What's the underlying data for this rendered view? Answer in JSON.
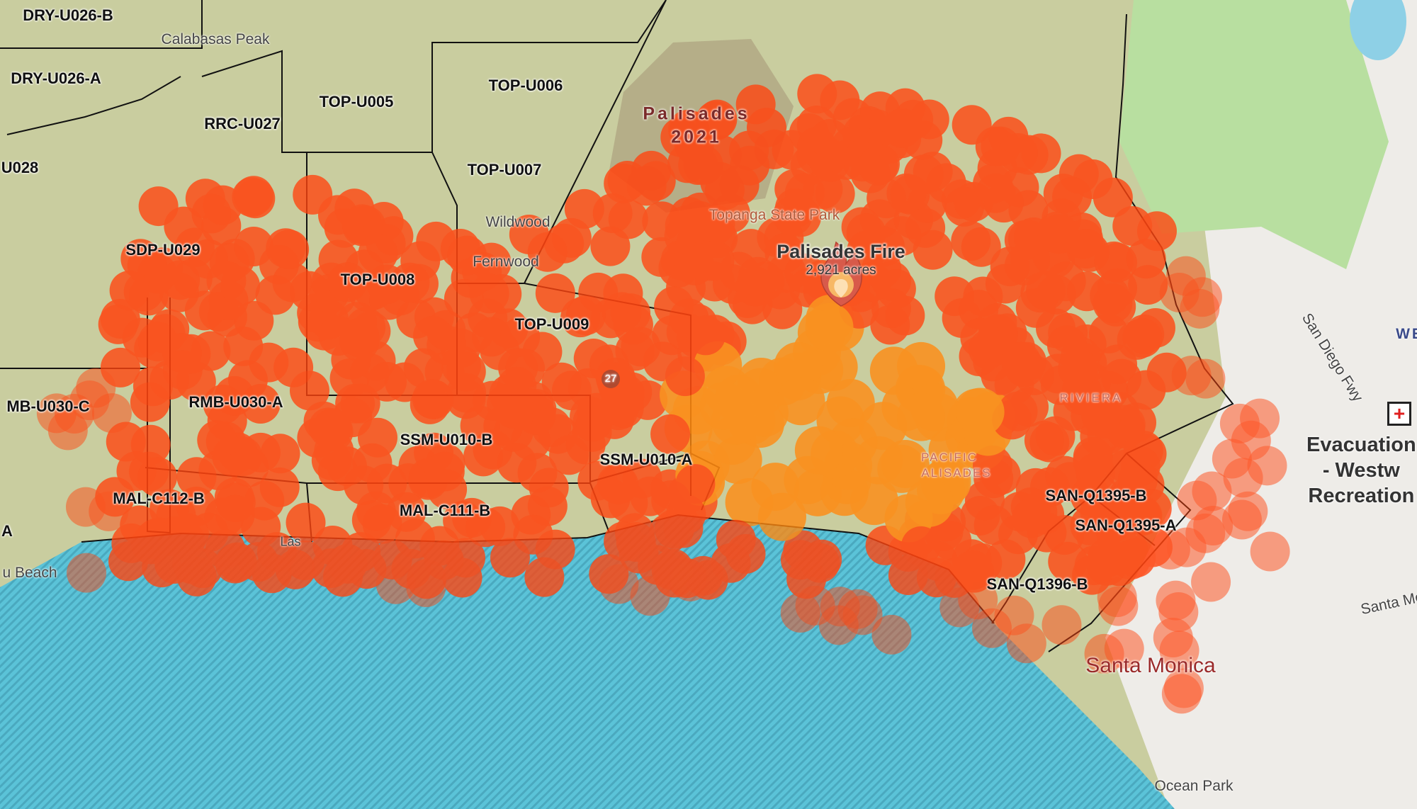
{
  "fire": {
    "name": "Palisades Fire",
    "acres": "2,921 acres",
    "icon": "flame-icon",
    "color_main": "#ff4510",
    "color_core": "#ff8a10"
  },
  "historic_fire": {
    "line1": "Palisades",
    "line2": "2021"
  },
  "evacuation": {
    "lines": [
      "Evacuation",
      "- Westw",
      "Recreation"
    ],
    "icon": "red-cross-icon"
  },
  "zones": [
    "DRY-U026-B",
    "DRY-U026-A",
    "RRC-U027",
    "U028",
    "TOP-U005",
    "TOP-U006",
    "TOP-U007",
    "SDP-U029",
    "TOP-U008",
    "TOP-U009",
    "MB-U030-C",
    "RMB-U030-A",
    "SSM-U010-B",
    "SSM-U010-A",
    "MAL-C112-B",
    "MAL-C111-B",
    "SAN-Q1395-B",
    "SAN-Q1395-A",
    "SAN-Q1396-B",
    "A"
  ],
  "places": {
    "calabasas_peak": "Calabasas Peak",
    "topanga_state_park": "Topanga State Park",
    "wildwood": "Wildwood",
    "fernwood": "Fernwood",
    "las": "Las",
    "malibu_beach": "u Beach",
    "santa_monica": "Santa Monica",
    "ocean_park": "Ocean Park",
    "san_diego_fwy": "San Diego Fwy",
    "we": "WE",
    "santa_mo": "Santa Mo",
    "riviera": "RIVIERA",
    "pacific": "PACIFIC",
    "palisades_small": "ALISADES",
    "route": "27"
  },
  "colors": {
    "ocean": "#5bc3d8",
    "land": "#c9cd9f",
    "city": "#eeece8",
    "park": "#b8dfa0",
    "zone_border": "#111111"
  }
}
